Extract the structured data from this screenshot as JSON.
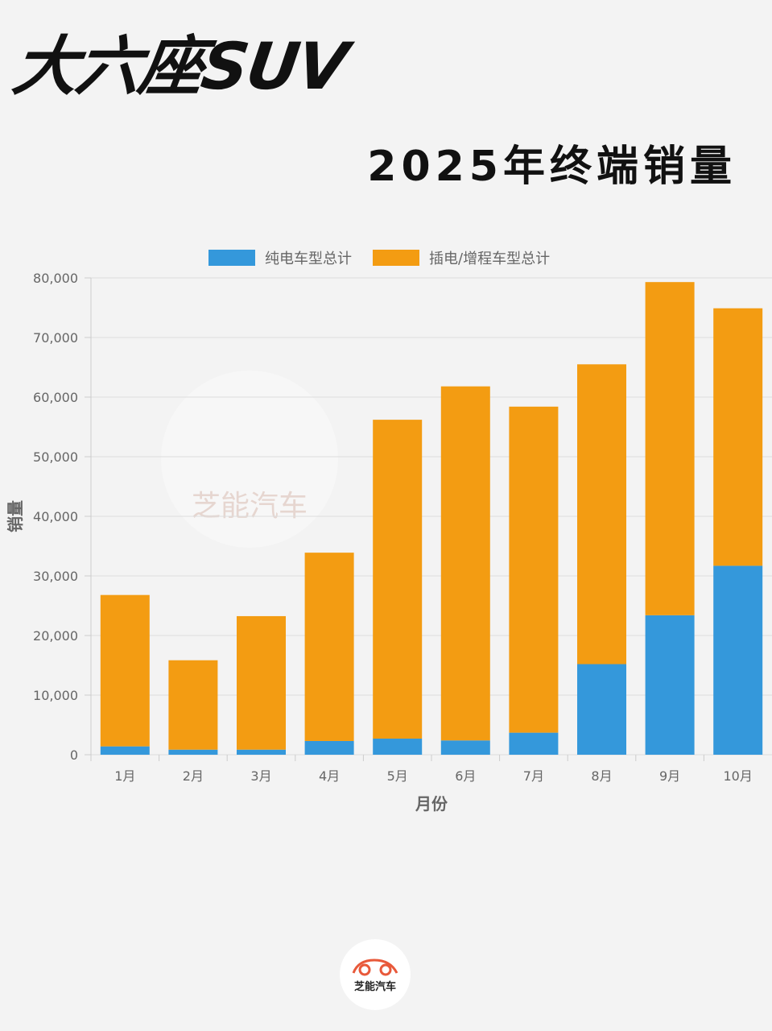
{
  "header": {
    "title": "大六座SUV",
    "subtitle": "2025年终端销量"
  },
  "watermark": "芝能汽车",
  "footer": {
    "logo_text": "芝能汽车"
  },
  "chart_data": {
    "type": "bar",
    "stacked": true,
    "categories": [
      "1月",
      "2月",
      "3月",
      "4月",
      "5月",
      "6月",
      "7月",
      "8月",
      "9月",
      "10月"
    ],
    "series": [
      {
        "name": "纯电车型总计",
        "color": "#3498db",
        "values": [
          1400,
          850,
          850,
          2300,
          2700,
          2400,
          3700,
          15200,
          23400,
          31700
        ]
      },
      {
        "name": "插电/增程车型总计",
        "color": "#f39c12",
        "values": [
          25400,
          15000,
          22400,
          31600,
          53500,
          59400,
          54700,
          50300,
          55900,
          43200
        ]
      }
    ],
    "xlabel": "月份",
    "ylabel": "销量",
    "ylim": [
      0,
      80000
    ],
    "yticks": [
      "0",
      "10,000",
      "20,000",
      "30,000",
      "40,000",
      "50,000",
      "60,000",
      "70,000",
      "80,000"
    ],
    "grid": true,
    "legend": "top"
  }
}
